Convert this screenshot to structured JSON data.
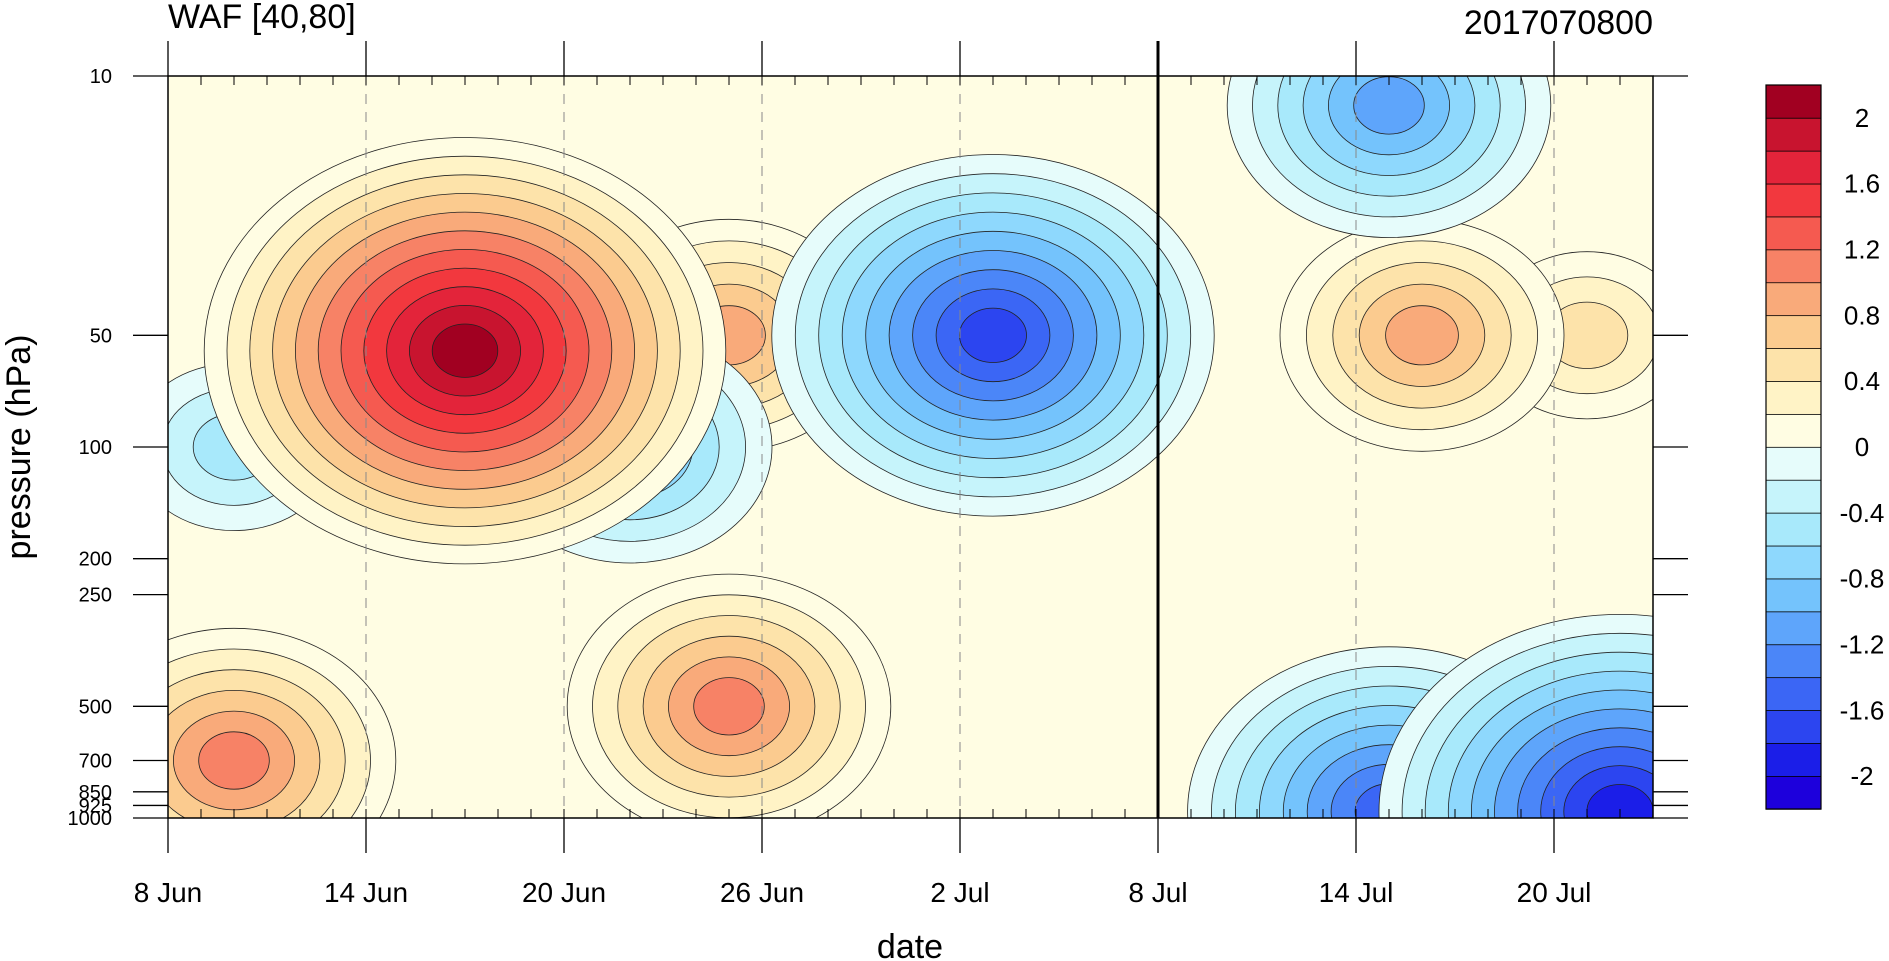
{
  "chart_data": {
    "type": "heatmap",
    "title_left": "WAF [40,80]",
    "title_right": "2017070800",
    "xlabel": "date",
    "ylabel": "pressure (hPa)",
    "x_ticks": [
      "8 Jun",
      "14 Jun",
      "20 Jun",
      "26 Jun",
      "2 Jul",
      "8 Jul",
      "14 Jul",
      "20 Jul"
    ],
    "x_range": [
      "2017-06-08",
      "2017-07-23"
    ],
    "y_scale": "log",
    "y_range": [
      1000,
      10
    ],
    "y_ticks": [
      "10",
      "50",
      "100",
      "200",
      "250",
      "500",
      "700",
      "850",
      "925",
      "1000"
    ],
    "marker_date": "8 Jul",
    "colorbar": {
      "levels": [
        -2.2,
        -2.0,
        -1.8,
        -1.6,
        -1.4,
        -1.2,
        -1.0,
        -0.8,
        -0.6,
        -0.4,
        -0.2,
        0,
        0.2,
        0.4,
        0.6,
        0.8,
        1.0,
        1.2,
        1.4,
        1.6,
        1.8,
        2.0,
        2.2
      ],
      "labels": [
        "-2",
        "-1.6",
        "-1.2",
        "-0.8",
        "-0.4",
        "0",
        "0.4",
        "0.8",
        "1.2",
        "1.6",
        "2"
      ],
      "colors": [
        "#1d00dc",
        "#1b1ee8",
        "#2c45f0",
        "#3b66f5",
        "#4b86f8",
        "#5ea5fb",
        "#74c3fc",
        "#8ed8fd",
        "#a8e9fb",
        "#c6f4fb",
        "#e6fcfb",
        "#fffde3",
        "#fff3c6",
        "#fde3aa",
        "#fbcb8f",
        "#f9aa7a",
        "#f78266",
        "#f55a50",
        "#f2383e",
        "#e3243a",
        "#c8142f",
        "#a10021"
      ]
    },
    "features": [
      {
        "date": "2017-06-17",
        "pressure": 55,
        "value": 2.2
      },
      {
        "date": "2017-06-25",
        "pressure": 50,
        "value": 0.9
      },
      {
        "date": "2017-06-25",
        "pressure": 500,
        "value": 1.1
      },
      {
        "date": "2017-07-03",
        "pressure": 50,
        "value": -1.8
      },
      {
        "date": "2017-06-22",
        "pressure": 100,
        "value": -0.9
      },
      {
        "date": "2017-06-10",
        "pressure": 100,
        "value": -0.6
      },
      {
        "date": "2017-07-16",
        "pressure": 50,
        "value": 1.0
      },
      {
        "date": "2017-07-21",
        "pressure": 50,
        "value": 0.6
      },
      {
        "date": "2017-07-15",
        "pressure": 960,
        "value": -1.6
      },
      {
        "date": "2017-07-22",
        "pressure": 960,
        "value": -2.0
      },
      {
        "date": "2017-07-15",
        "pressure": 12,
        "value": -1.2
      },
      {
        "date": "2017-06-10",
        "pressure": 700,
        "value": 1.1
      }
    ]
  }
}
